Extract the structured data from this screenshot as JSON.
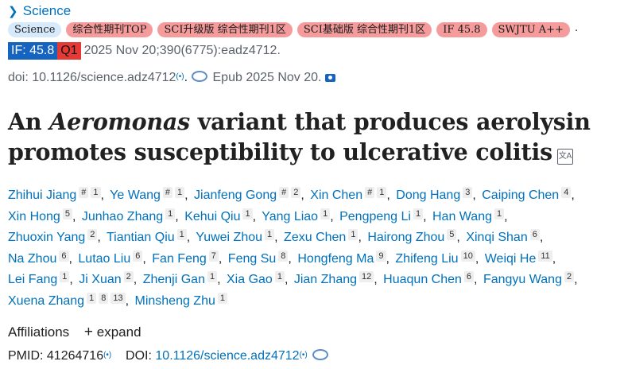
{
  "journal": {
    "name": "Science"
  },
  "tags": [
    {
      "label": "Science",
      "style": "blue"
    },
    {
      "label": "综合性期刊TOP",
      "style": "red"
    },
    {
      "label": "SCI升级版 综合性期刊1区",
      "style": "red"
    },
    {
      "label": "SCI基础版 综合性期刊1区",
      "style": "red"
    },
    {
      "label": "IF 45.8",
      "style": "red"
    },
    {
      "label": "SWJTU A++",
      "style": "red"
    }
  ],
  "citation": {
    "if_badge": "IF: 45.8",
    "q_badge": "Q1",
    "text": "2025 Nov 20;390(6775):eadz4712."
  },
  "doi_line": {
    "doi_text": "doi: 10.1126/science.adz4712",
    "epub": "Epub 2025 Nov 20."
  },
  "article": {
    "title_before": "An ",
    "title_italic": "Aeromonas",
    "title_after": " variant that produces aerolysin promotes susceptibility to ulcerative colitis"
  },
  "authors": [
    {
      "name": "Zhihui Jiang",
      "marks": [
        "#",
        "1"
      ]
    },
    {
      "name": "Ye Wang",
      "marks": [
        "#",
        "1"
      ]
    },
    {
      "name": "Jianfeng Gong",
      "marks": [
        "#",
        "2"
      ]
    },
    {
      "name": "Xin Chen",
      "marks": [
        "#",
        "1"
      ]
    },
    {
      "name": "Dong Hang",
      "marks": [
        "3"
      ]
    },
    {
      "name": "Caiping Chen",
      "marks": [
        "4"
      ]
    },
    {
      "name": "Xin Hong",
      "marks": [
        "5"
      ]
    },
    {
      "name": "Junhao Zhang",
      "marks": [
        "1"
      ]
    },
    {
      "name": "Kehui Qiu",
      "marks": [
        "1"
      ]
    },
    {
      "name": "Yang Liao",
      "marks": [
        "1"
      ]
    },
    {
      "name": "Pengpeng Li",
      "marks": [
        "1"
      ]
    },
    {
      "name": "Han Wang",
      "marks": [
        "1"
      ]
    },
    {
      "name": "Zhuoxin Yang",
      "marks": [
        "2"
      ]
    },
    {
      "name": "Tiantian Qiu",
      "marks": [
        "1"
      ]
    },
    {
      "name": "Yuwei Zhou",
      "marks": [
        "1"
      ]
    },
    {
      "name": "Zexu Chen",
      "marks": [
        "1"
      ]
    },
    {
      "name": "Hairong Zhou",
      "marks": [
        "5"
      ]
    },
    {
      "name": "Xinqi Shan",
      "marks": [
        "6"
      ]
    },
    {
      "name": "Na Zhou",
      "marks": [
        "6"
      ]
    },
    {
      "name": "Lutao Liu",
      "marks": [
        "6"
      ]
    },
    {
      "name": "Fan Feng",
      "marks": [
        "7"
      ]
    },
    {
      "name": "Feng Su",
      "marks": [
        "8"
      ]
    },
    {
      "name": "Hongfeng Ma",
      "marks": [
        "9"
      ]
    },
    {
      "name": "Zhifeng Liu",
      "marks": [
        "10"
      ]
    },
    {
      "name": "Weiqi He",
      "marks": [
        "11"
      ]
    },
    {
      "name": "Lei Fang",
      "marks": [
        "1"
      ]
    },
    {
      "name": "Ji Xuan",
      "marks": [
        "2"
      ]
    },
    {
      "name": "Zhenji Gan",
      "marks": [
        "1"
      ]
    },
    {
      "name": "Xia Gao",
      "marks": [
        "1"
      ]
    },
    {
      "name": "Jian Zhang",
      "marks": [
        "12"
      ]
    },
    {
      "name": "Huaqun Chen",
      "marks": [
        "6"
      ]
    },
    {
      "name": "Fangyu Wang",
      "marks": [
        "2"
      ]
    },
    {
      "name": "Xuena Zhang",
      "marks": [
        "1",
        "8",
        "13"
      ]
    },
    {
      "name": "Minsheng Zhu",
      "marks": [
        "1"
      ]
    }
  ],
  "author_breaks_after": [
    5,
    11,
    17,
    24,
    31
  ],
  "affiliations": {
    "label": "Affiliations",
    "plus": "+",
    "expand": "expand"
  },
  "ids": {
    "pmid_label": "PMID:",
    "pmid": "41264716",
    "doi_label": "DOI:",
    "doi": "10.1126/science.adz4712"
  },
  "icons": {
    "chevron": "chevron-right-icon",
    "altmetric": "altmetric-icon",
    "publisher": "publisher-link-icon",
    "camera": "camera-icon",
    "translate": "translate-icon"
  }
}
